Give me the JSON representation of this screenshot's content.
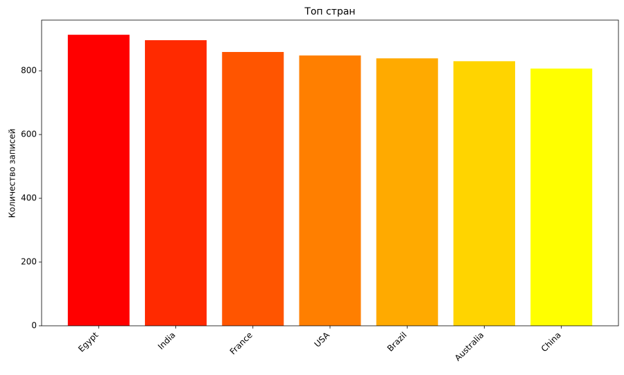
{
  "chart_data": {
    "type": "bar",
    "title": "Топ стран",
    "y_label": "Количество записей",
    "categories": [
      "Egypt",
      "India",
      "France",
      "USA",
      "Brazil",
      "Australia",
      "China"
    ],
    "values": [
      913,
      896,
      859,
      848,
      839,
      830,
      807
    ],
    "colors": [
      "#ff0000",
      "#ff2a00",
      "#ff5500",
      "#ff7f00",
      "#ffaa00",
      "#ffd400",
      "#ffff00"
    ],
    "ylim": [
      0,
      959
    ],
    "yticks": [
      0,
      200,
      400,
      600,
      800
    ],
    "grid": false
  }
}
